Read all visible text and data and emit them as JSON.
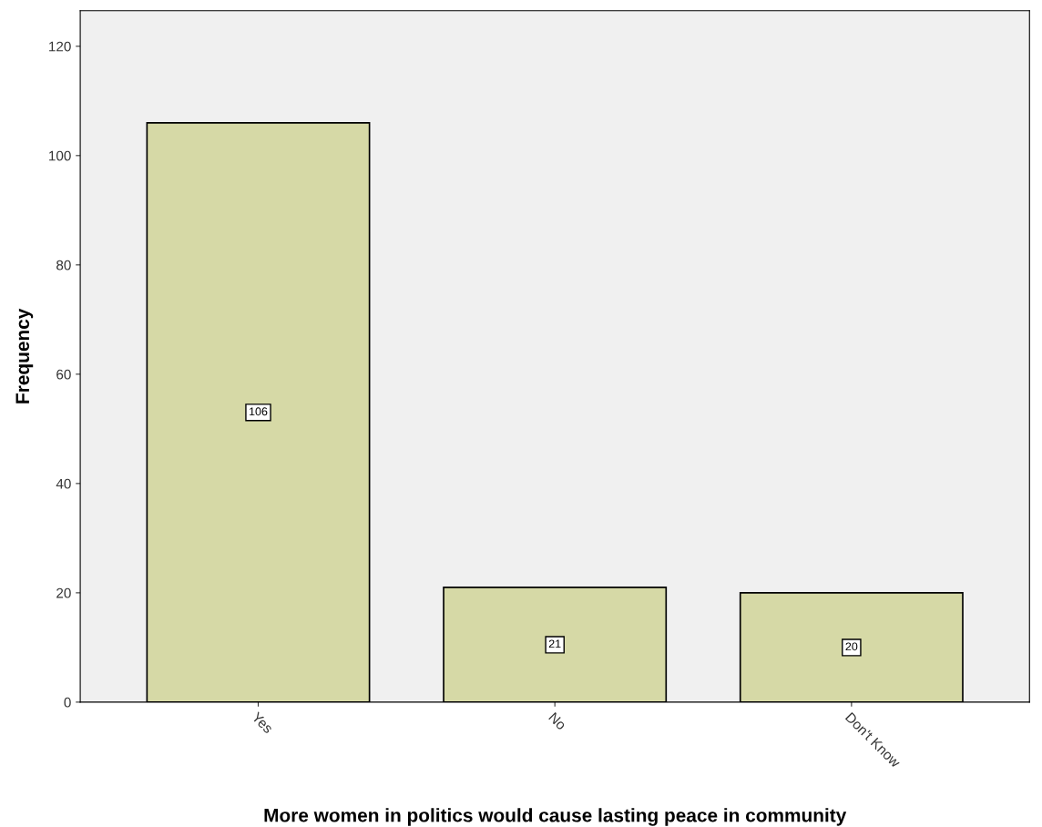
{
  "chart_data": {
    "type": "bar",
    "xlabel": "More women in politics would cause lasting peace in community",
    "ylabel": "Frequency",
    "categories": [
      "Yes",
      "No",
      "Don't Know"
    ],
    "values": [
      106,
      21,
      20
    ],
    "color": "#d6d9a6",
    "ylim": [
      0,
      126.5
    ],
    "yticks": [
      0,
      20,
      40,
      60,
      80,
      100,
      120
    ],
    "grid": false,
    "data_labels": true
  }
}
